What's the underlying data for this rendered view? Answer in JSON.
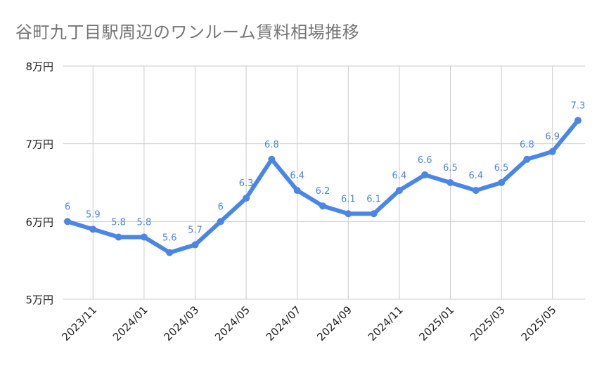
{
  "chart_data": {
    "type": "line",
    "title": "谷町九丁目駅周辺のワンルーム賃料相場推移",
    "xlabel": "",
    "ylabel": "",
    "x": [
      "2023/10",
      "2023/11",
      "2023/12",
      "2024/01",
      "2024/02",
      "2024/03",
      "2024/04",
      "2024/05",
      "2024/06",
      "2024/07",
      "2024/08",
      "2024/09",
      "2024/10",
      "2024/11",
      "2024/12",
      "2025/01",
      "2025/02",
      "2025/03",
      "2025/04",
      "2025/05",
      "2025/06"
    ],
    "x_tick_labels": [
      "2023/11",
      "2024/01",
      "2024/03",
      "2024/05",
      "2024/07",
      "2024/09",
      "2024/11",
      "2025/01",
      "2025/03",
      "2025/05"
    ],
    "series": [
      {
        "values": [
          6,
          5.9,
          5.8,
          5.8,
          5.6,
          5.7,
          6,
          6.3,
          6.8,
          6.4,
          6.2,
          6.1,
          6.1,
          6.4,
          6.6,
          6.5,
          6.4,
          6.5,
          6.8,
          6.9,
          7.3
        ],
        "labels": [
          "6",
          "5.9",
          "5.8",
          "5.8",
          "5.6",
          "5.7",
          "6",
          "6.3",
          "6.8",
          "6.4",
          "6.2",
          "6.1",
          "6.1",
          "6.4",
          "6.6",
          "6.5",
          "6.4",
          "6.5",
          "6.8",
          "6.9",
          "7.3"
        ],
        "color": "#4a86e8"
      }
    ],
    "ylim": [
      5,
      8
    ],
    "y_ticks": [
      {
        "value": 5,
        "label": "5万円"
      },
      {
        "value": 6,
        "label": "6万円"
      },
      {
        "value": 7,
        "label": "7万円"
      },
      {
        "value": 8,
        "label": "8万円"
      }
    ],
    "grid": true,
    "legend": "none"
  }
}
